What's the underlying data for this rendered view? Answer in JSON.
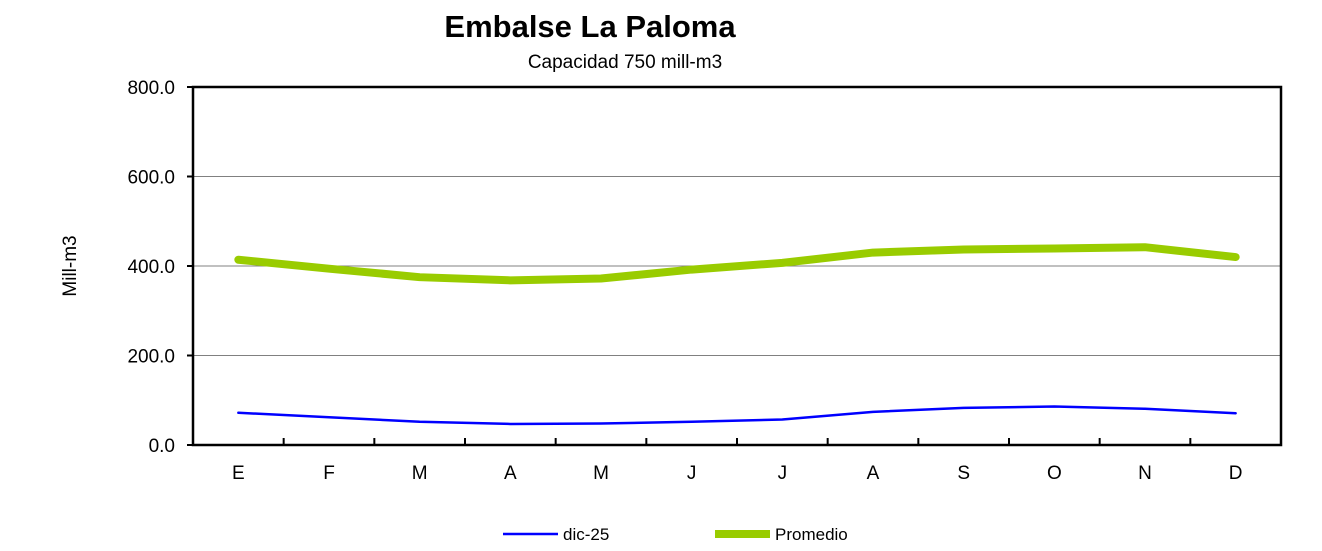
{
  "chart_data": {
    "type": "line",
    "title": "Embalse La Paloma",
    "subtitle": "Capacidad 750 mill-m3",
    "xlabel": "",
    "ylabel": "Mill-m3",
    "ylim": [
      0,
      800
    ],
    "yticks": [
      "0.0",
      "200.0",
      "400.0",
      "600.0",
      "800.0"
    ],
    "ytick_values": [
      0,
      200,
      400,
      600,
      800
    ],
    "categories": [
      "E",
      "F",
      "M",
      "A",
      "M",
      "J",
      "J",
      "A",
      "S",
      "O",
      "N",
      "D"
    ],
    "grid": true,
    "legend_placement": "bottom",
    "series": [
      {
        "name": "dic-25",
        "color": "#0000ff",
        "values": [
          72,
          62,
          52,
          47,
          48,
          52,
          57,
          74,
          83,
          86,
          81,
          71
        ]
      },
      {
        "name": "Promedio",
        "color": "#99cc00",
        "values": [
          414,
          394,
          375,
          368,
          372,
          392,
          407,
          430,
          437,
          439,
          442,
          420
        ]
      }
    ]
  }
}
